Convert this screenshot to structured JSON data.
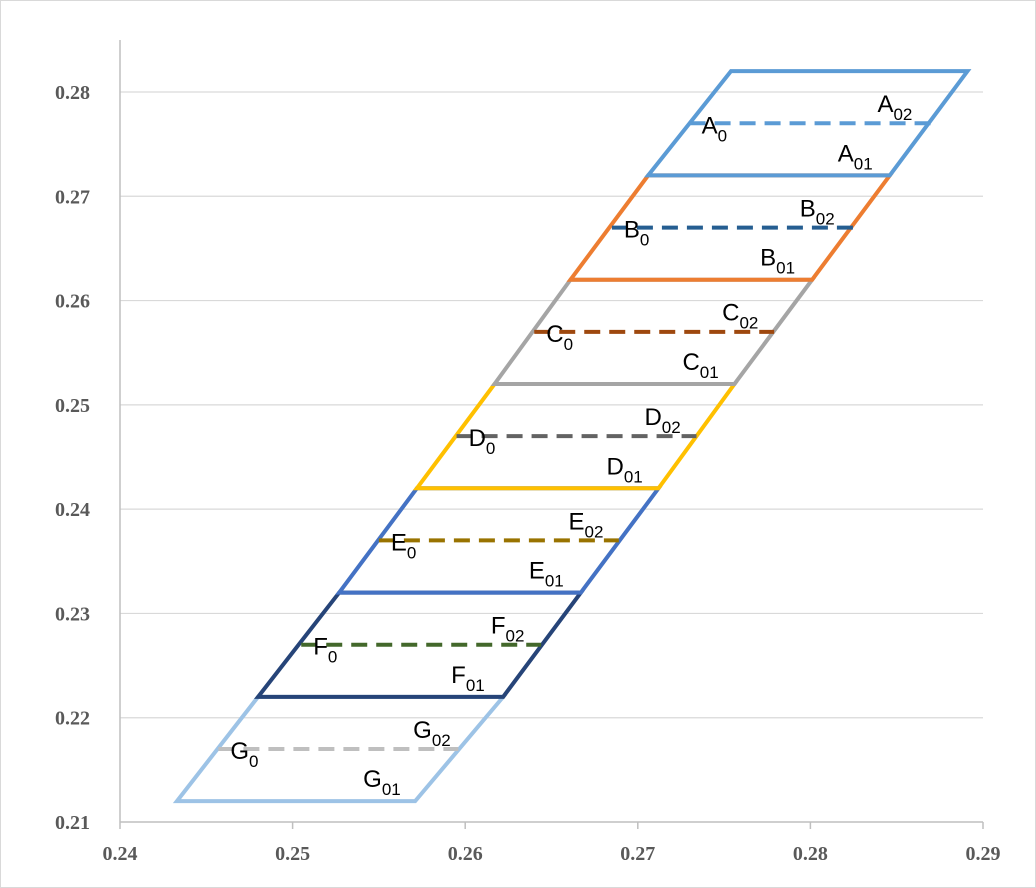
{
  "chart_data": {
    "type": "line",
    "title": "",
    "xlabel": "",
    "ylabel": "",
    "xlim": [
      0.24,
      0.29
    ],
    "ylim": [
      0.21,
      0.28
    ],
    "x_ticks": [
      "0.24",
      "0.25",
      "0.26",
      "0.27",
      "0.28",
      "0.29"
    ],
    "y_ticks": [
      "0.21",
      "0.22",
      "0.23",
      "0.24",
      "0.25",
      "0.26",
      "0.27",
      "0.28"
    ],
    "grid": "horizontal",
    "legend": "none",
    "cells": [
      {
        "name": "A",
        "color": "#5b9bd5",
        "y_bottom": 0.272,
        "y_top": 0.282,
        "bottom": [
          0.2706,
          0.2846
        ],
        "top": [
          0.2754,
          0.2891
        ],
        "center": {
          "y": 0.277,
          "x": [
            0.273,
            0.287
          ],
          "color": "#5b9bd5"
        },
        "labels": {
          "zero": {
            "base": "A",
            "sub": "0"
          },
          "upper": {
            "base": "A",
            "sub": "02"
          },
          "lower": {
            "base": "A",
            "sub": "01"
          }
        }
      },
      {
        "name": "B",
        "color": "#ed7d31",
        "y_bottom": 0.262,
        "y_top": 0.272,
        "bottom": [
          0.2661,
          0.2801
        ],
        "top": [
          0.2706,
          0.2846
        ],
        "center": {
          "y": 0.267,
          "x": [
            0.2685,
            0.2825
          ],
          "color": "#255e91"
        },
        "labels": {
          "zero": {
            "base": "B",
            "sub": "0"
          },
          "upper": {
            "base": "B",
            "sub": "02"
          },
          "lower": {
            "base": "B",
            "sub": "01"
          }
        }
      },
      {
        "name": "C",
        "color": "#a5a5a5",
        "y_bottom": 0.252,
        "y_top": 0.262,
        "bottom": [
          0.2617,
          0.2756
        ],
        "top": [
          0.2661,
          0.2801
        ],
        "center": {
          "y": 0.257,
          "x": [
            0.264,
            0.2779
          ],
          "color": "#9e480e"
        },
        "labels": {
          "zero": {
            "base": "C",
            "sub": "0"
          },
          "upper": {
            "base": "C",
            "sub": "02"
          },
          "lower": {
            "base": "C",
            "sub": "01"
          }
        }
      },
      {
        "name": "D",
        "color": "#ffc000",
        "y_bottom": 0.242,
        "y_top": 0.252,
        "bottom": [
          0.2572,
          0.2712
        ],
        "top": [
          0.2617,
          0.2756
        ],
        "center": {
          "y": 0.247,
          "x": [
            0.2595,
            0.2734
          ],
          "color": "#636363"
        },
        "labels": {
          "zero": {
            "base": "D",
            "sub": "0"
          },
          "upper": {
            "base": "D",
            "sub": "02"
          },
          "lower": {
            "base": "D",
            "sub": "01"
          }
        }
      },
      {
        "name": "E",
        "color": "#4472c4",
        "y_bottom": 0.232,
        "y_top": 0.242,
        "bottom": [
          0.2527,
          0.2667
        ],
        "top": [
          0.2572,
          0.2712
        ],
        "center": {
          "y": 0.237,
          "x": [
            0.255,
            0.2689
          ],
          "color": "#997300"
        },
        "labels": {
          "zero": {
            "base": "E",
            "sub": "0"
          },
          "upper": {
            "base": "E",
            "sub": "02"
          },
          "lower": {
            "base": "E",
            "sub": "01"
          }
        }
      },
      {
        "name": "F",
        "color": "#264478",
        "y_bottom": 0.222,
        "y_top": 0.232,
        "bottom": [
          0.248,
          0.2622
        ],
        "top": [
          0.2527,
          0.2667
        ],
        "center": {
          "y": 0.227,
          "x": [
            0.2505,
            0.2644
          ],
          "color": "#43682b"
        },
        "labels": {
          "zero": {
            "base": "F",
            "sub": "0"
          },
          "upper": {
            "base": "F",
            "sub": "02"
          },
          "lower": {
            "base": "F",
            "sub": "01"
          }
        }
      },
      {
        "name": "G",
        "color": "#9dc3e6",
        "y_bottom": 0.212,
        "y_top": 0.222,
        "bottom": [
          0.2433,
          0.2571
        ],
        "top": [
          0.248,
          0.2622
        ],
        "center": {
          "y": 0.217,
          "x": [
            0.2457,
            0.2596
          ],
          "color": "#bfbfbf"
        },
        "labels": {
          "zero": {
            "base": "G",
            "sub": "0"
          },
          "upper": {
            "base": "G",
            "sub": "02"
          },
          "lower": {
            "base": "G",
            "sub": "01"
          }
        }
      }
    ]
  }
}
